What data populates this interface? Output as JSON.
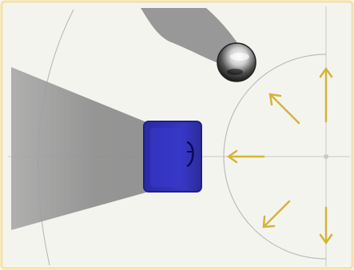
{
  "diagram": {
    "colors": {
      "frame_fill": "#f4f4f0",
      "frame_border": "#f3e3a6",
      "guide_line": "#c9c9c9",
      "arc_line": "#b9b9b9",
      "light_beam": "#8c8c8c",
      "object_body": "#3434b8",
      "object_dark": "#1f1f88",
      "arrow": "#d4b43a",
      "sphere_shadow": "#9a9a9a"
    },
    "icons": {
      "object": "blue-box-icon",
      "sphere": "chrome-sphere-icon",
      "arrows": "arrow-icon"
    }
  }
}
